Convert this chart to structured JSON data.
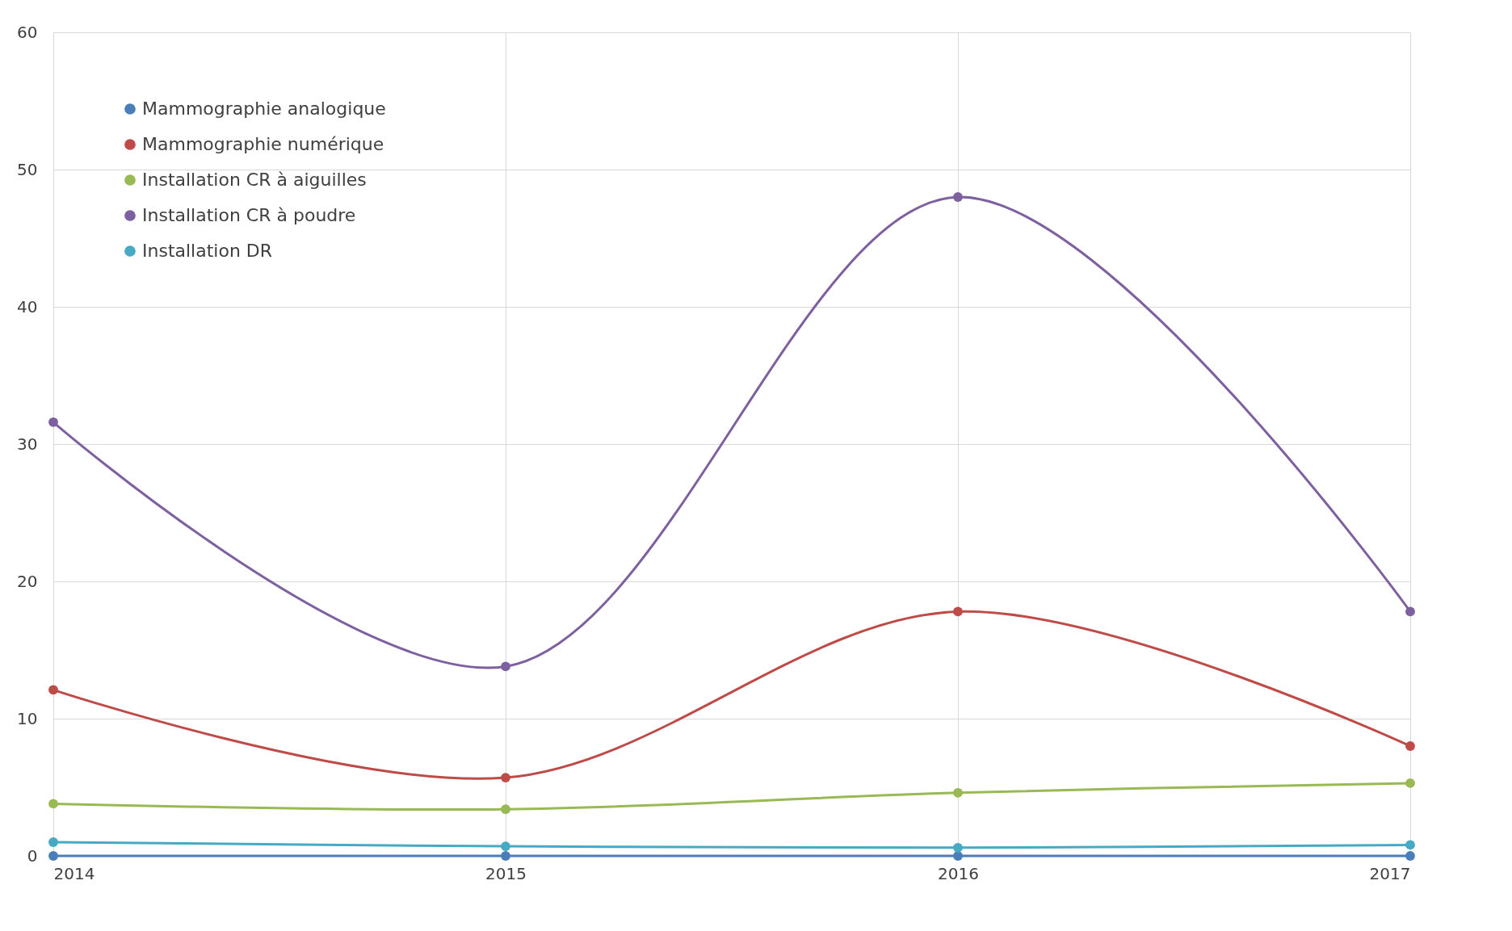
{
  "chart_data": {
    "type": "line",
    "x": [
      2014,
      2015,
      2016,
      2017
    ],
    "xlim": [
      2014,
      2017
    ],
    "xticks": [
      2014,
      2015,
      2016,
      2017
    ],
    "ylim": [
      0,
      60
    ],
    "yticks": [
      0,
      10,
      20,
      30,
      40,
      50,
      60
    ],
    "grid": true,
    "legend": "top left",
    "marker": "circle",
    "line_style": "solid",
    "series": [
      {
        "name": "Mammographie analogique",
        "color": "#4a7ebb",
        "values": [
          0,
          0,
          0,
          0
        ]
      },
      {
        "name": "Mammographie numérique",
        "color": "#be4b48",
        "values": [
          12.1,
          5.7,
          17.8,
          8.0
        ]
      },
      {
        "name": "Installation CR à aiguilles",
        "color": "#98b954",
        "values": [
          3.8,
          3.4,
          4.6,
          5.3
        ]
      },
      {
        "name": "Installation CR à poudre",
        "color": "#7d60a0",
        "values": [
          31.6,
          13.8,
          48.0,
          17.8
        ]
      },
      {
        "name": "Installation DR",
        "color": "#46aac5",
        "values": [
          1.0,
          0.7,
          0.6,
          0.8
        ]
      }
    ]
  }
}
